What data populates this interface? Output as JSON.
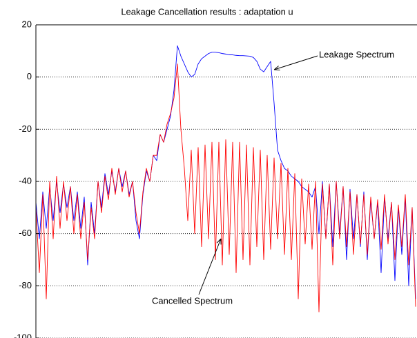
{
  "chart_data": {
    "type": "line",
    "title": "Leakage Cancellation results : adaptation u",
    "ylim": [
      -100,
      20
    ],
    "yticks": [
      20,
      0,
      -20,
      -40,
      -60,
      -80,
      -100
    ],
    "grid": true,
    "annotations": [
      "Leakage Spectrum",
      "Cancelled Spectrum"
    ],
    "series": [
      {
        "name": "Leakage Spectrum",
        "color": "#0000ff",
        "values": [
          -48,
          -62,
          -44,
          -58,
          -42,
          -55,
          -40,
          -52,
          -41,
          -50,
          -42,
          -55,
          -44,
          -58,
          -46,
          -72,
          -48,
          -60,
          -40,
          -50,
          -37,
          -45,
          -36,
          -44,
          -35,
          -42,
          -36,
          -45,
          -40,
          -55,
          -62,
          -45,
          -36,
          -40,
          -30,
          -32,
          -22,
          -25,
          -20,
          -15,
          -5,
          12,
          8,
          5,
          2,
          0,
          1,
          5,
          7,
          8,
          9,
          9.5,
          9.5,
          9.3,
          9,
          8.8,
          8.5,
          8.5,
          8.3,
          8.2,
          8.2,
          8.1,
          8,
          7.5,
          6,
          3,
          2,
          4,
          6,
          -10,
          -28,
          -32,
          -35,
          -36,
          -38,
          -39,
          -40,
          -42,
          -43,
          -44,
          -46,
          -42,
          -60,
          -40,
          -62,
          -41,
          -65,
          -40,
          -60,
          -42,
          -70,
          -43,
          -62,
          -45,
          -65,
          -44,
          -70,
          -47,
          -62,
          -48,
          -75,
          -46,
          -62,
          -48,
          -78,
          -50,
          -68,
          -46,
          -80,
          -50,
          -85
        ]
      },
      {
        "name": "Cancelled Spectrum",
        "color": "#ff0000",
        "values": [
          -50,
          -75,
          -45,
          -85,
          -40,
          -62,
          -38,
          -58,
          -40,
          -55,
          -42,
          -60,
          -45,
          -62,
          -48,
          -70,
          -50,
          -62,
          -40,
          -52,
          -38,
          -47,
          -35,
          -45,
          -35,
          -44,
          -36,
          -46,
          -40,
          -52,
          -60,
          -44,
          -35,
          -40,
          -30,
          -30,
          -22,
          -25,
          -18,
          -14,
          -8,
          5,
          -20,
          -35,
          -55,
          -28,
          -60,
          -27,
          -65,
          -26,
          -62,
          -25,
          -70,
          -25,
          -72,
          -24,
          -68,
          -25,
          -75,
          -25,
          -70,
          -26,
          -72,
          -27,
          -65,
          -28,
          -70,
          -30,
          -66,
          -31,
          -62,
          -33,
          -68,
          -35,
          -70,
          -37,
          -85,
          -39,
          -64,
          -41,
          -66,
          -40,
          -90,
          -41,
          -62,
          -41,
          -72,
          -40,
          -62,
          -42,
          -65,
          -44,
          -68,
          -45,
          -64,
          -45,
          -68,
          -46,
          -62,
          -47,
          -66,
          -45,
          -64,
          -48,
          -70,
          -49,
          -65,
          -45,
          -72,
          -50,
          -88
        ]
      }
    ]
  }
}
